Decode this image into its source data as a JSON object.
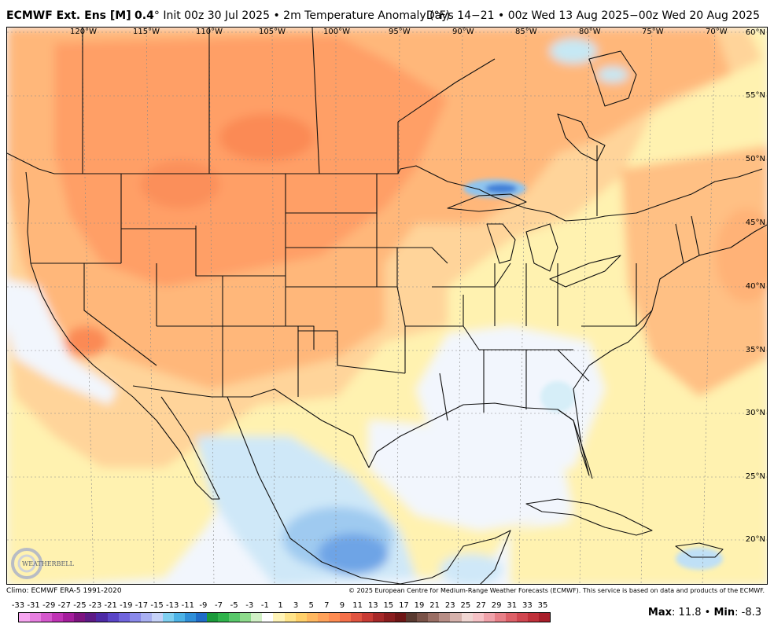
{
  "header": {
    "model": "ECMWF Ext. Ens [M]",
    "resolution": "0.4",
    "deg": "°",
    "init": "Init 00z 30 Jul 2025",
    "sep": "•",
    "variable": "2m Temperature Anomaly (°F)",
    "valid": "Days 14−21 • 00z Wed 13 Aug 2025−00z Wed 20 Aug 2025"
  },
  "longitudes": [
    "120°W",
    "115°W",
    "110°W",
    "105°W",
    "100°W",
    "95°W",
    "90°W",
    "85°W",
    "80°W",
    "75°W",
    "70°W"
  ],
  "latitudes": [
    "60°N",
    "55°N",
    "50°N",
    "45°N",
    "40°N",
    "35°N",
    "30°N",
    "25°N",
    "20°N"
  ],
  "footer": {
    "climo": "Climo: ECMWF ERA-5 1991-2020",
    "copyright": "© 2025 European Centre for Medium-Range Weather Forecasts (ECMWF). This service is based on data and products of the ECMWF."
  },
  "scale": {
    "labels": [
      "-33",
      "-31",
      "-29",
      "-27",
      "-25",
      "-23",
      "-21",
      "-19",
      "-17",
      "-15",
      "-13",
      "-11",
      "-9",
      "-7",
      "-5",
      "-3",
      "-1",
      "1",
      "3",
      "5",
      "7",
      "9",
      "11",
      "13",
      "15",
      "17",
      "19",
      "21",
      "23",
      "25",
      "27",
      "29",
      "31",
      "33",
      "35"
    ],
    "colors": [
      "#f7a6f0",
      "#e77fe0",
      "#d558cd",
      "#c033b5",
      "#a41d9c",
      "#7d1380",
      "#5d1a86",
      "#4d2aa6",
      "#5a45c8",
      "#7065dd",
      "#8a89ea",
      "#a9b0f2",
      "#c6d2f8",
      "#7fcff0",
      "#4db3e6",
      "#2f8fd8",
      "#1f6cc8",
      "#1a9a3a",
      "#2fb34b",
      "#58c86a",
      "#8edb8c",
      "#d1f0c6",
      "#ffffff",
      "#fff4b8",
      "#ffe48a",
      "#ffd06a",
      "#ffb860",
      "#ffa25a",
      "#ff8c52",
      "#f5704a",
      "#e05440",
      "#c83b34",
      "#a62828",
      "#8a1d1e",
      "#6e1616",
      "#5a3a30",
      "#7a5248",
      "#9a6e64",
      "#b88e86",
      "#d6b2ac",
      "#f0d6d2",
      "#f6c2c6",
      "#f0a2aa",
      "#e88088",
      "#dd6068",
      "#d04650",
      "#c0303a",
      "#a81e2a"
    ],
    "logo_text": "WEATHERBELL"
  },
  "stats": {
    "max_label": "Max",
    "max_value": ": 11.8",
    "sep": "•",
    "min_label": "Min",
    "min_value": ": -8.3"
  }
}
